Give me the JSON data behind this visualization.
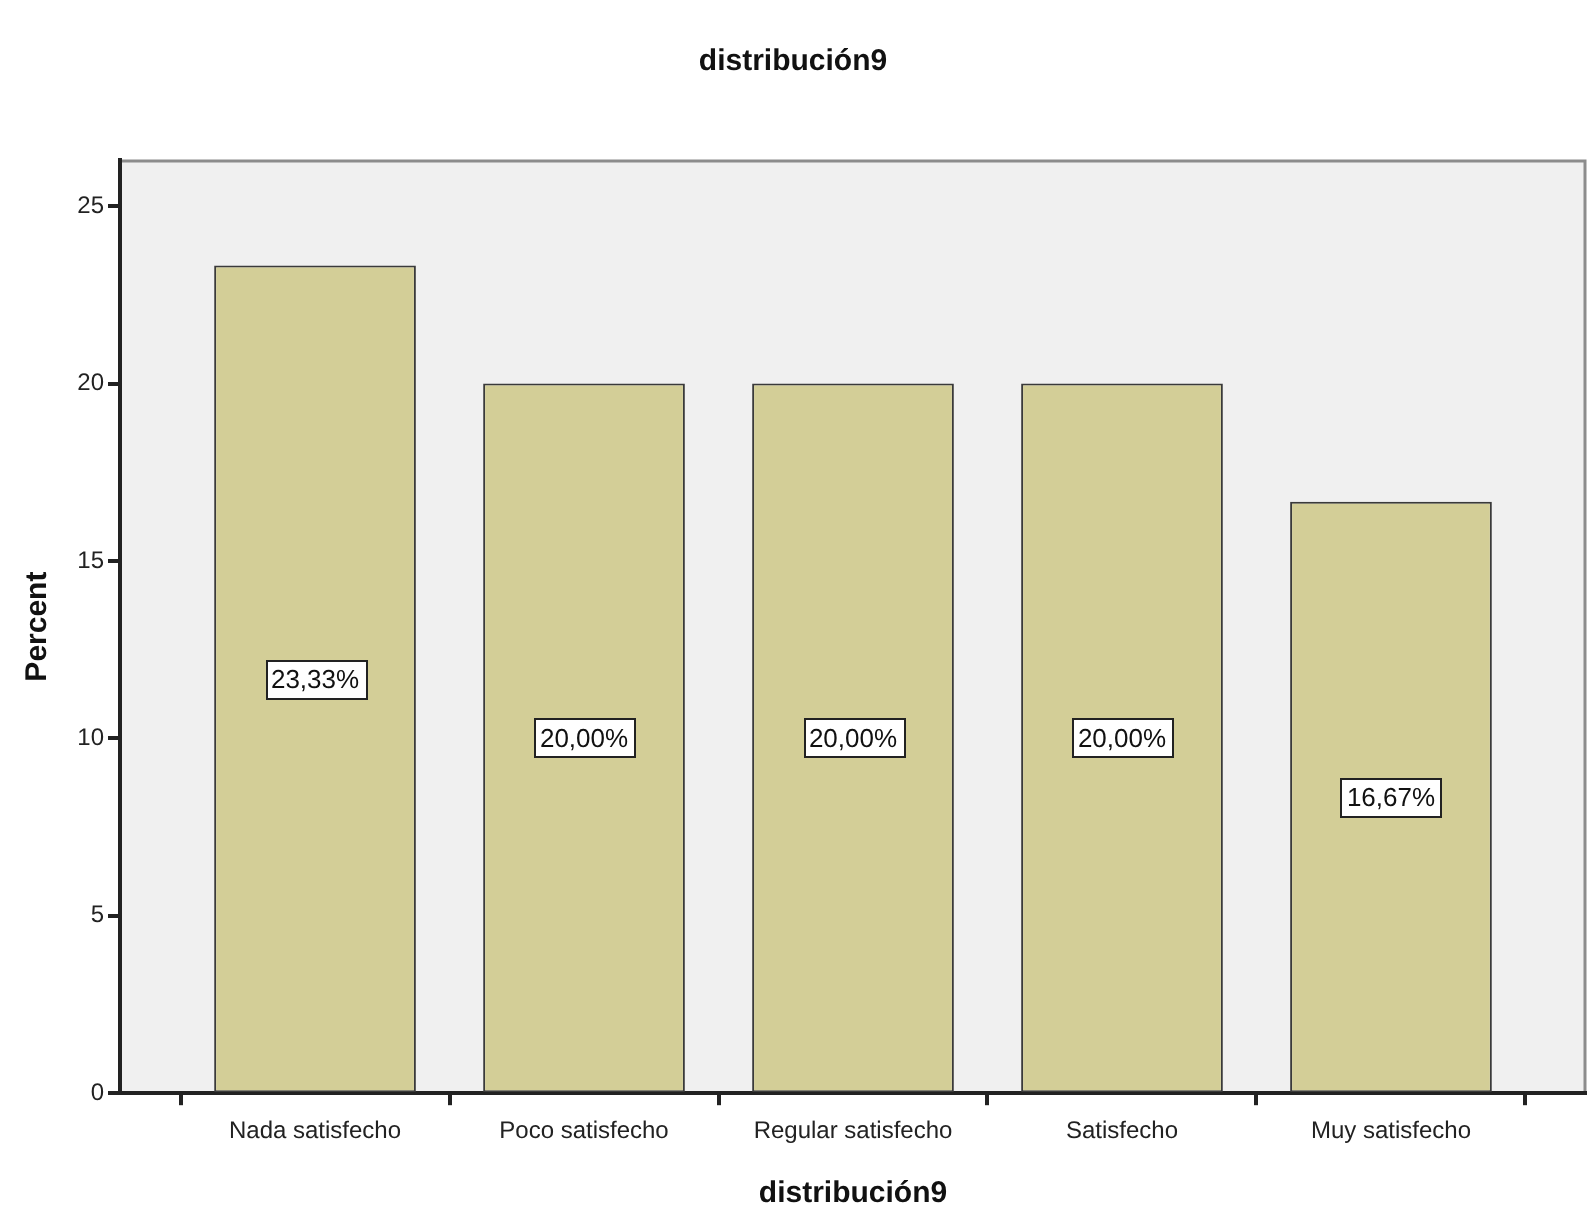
{
  "chart_data": {
    "type": "bar",
    "title": "distribución9",
    "xlabel": "distribución9",
    "ylabel": "Percent",
    "categories": [
      "Nada satisfecho",
      "Poco satisfecho",
      "Regular satisfecho",
      "Satisfecho",
      "Muy satisfecho"
    ],
    "values": [
      23.33,
      20,
      20,
      20,
      16.67
    ],
    "color": "#d3ce97",
    "value_labels": [
      "23,33%",
      "20,00%",
      "20,00%",
      "20,00%",
      "16,67%"
    ],
    "ylim": [
      0,
      26.3
    ],
    "yticks": [
      0,
      5,
      10,
      15,
      20,
      25
    ],
    "grid": false,
    "legend": false
  }
}
